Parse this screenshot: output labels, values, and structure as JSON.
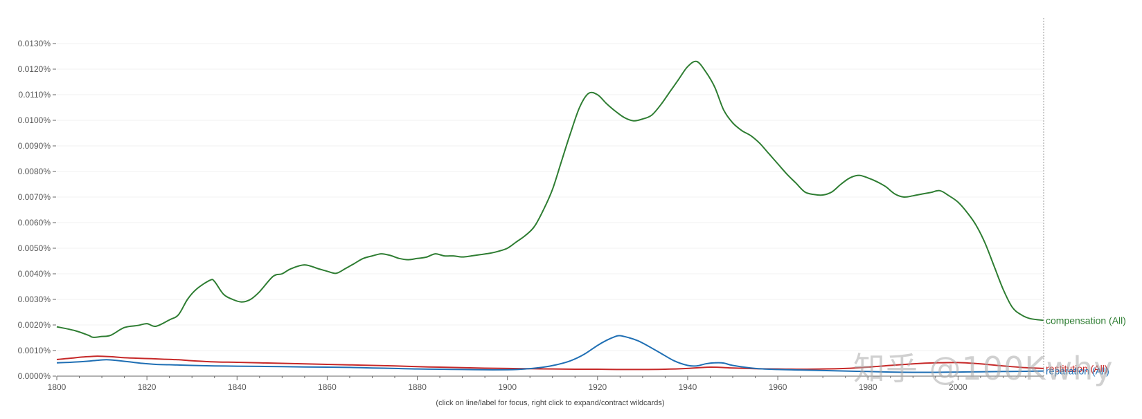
{
  "chart_data": {
    "type": "line",
    "title": "",
    "xlabel": "",
    "ylabel": "",
    "xlim": [
      1800,
      2019
    ],
    "ylim": [
      0,
      0.013
    ],
    "x_ticks": [
      1800,
      1820,
      1840,
      1860,
      1880,
      1900,
      1920,
      1940,
      1960,
      1980,
      2000
    ],
    "y_ticks": [
      0,
      0.001,
      0.002,
      0.003,
      0.004,
      0.005,
      0.006,
      0.007,
      0.008,
      0.009,
      0.01,
      0.011,
      0.012,
      0.013
    ],
    "y_tick_labels": [
      "0.0000%",
      "0.0010%",
      "0.0020%",
      "0.0030%",
      "0.0040%",
      "0.0050%",
      "0.0060%",
      "0.0070%",
      "0.0080%",
      "0.0090%",
      "0.0100%",
      "0.0110%",
      "0.0120%",
      "0.0130%"
    ],
    "grid": true,
    "series": [
      {
        "name": "compensation (All)",
        "color": "#2e7d32",
        "x": [
          1800,
          1804,
          1807,
          1808,
          1810,
          1812,
          1815,
          1818,
          1820,
          1822,
          1825,
          1827,
          1829,
          1831,
          1834,
          1835,
          1837,
          1839,
          1841,
          1843,
          1845,
          1848,
          1850,
          1852,
          1855,
          1858,
          1860,
          1862,
          1864,
          1866,
          1868,
          1870,
          1872,
          1874,
          1876,
          1878,
          1880,
          1882,
          1884,
          1886,
          1888,
          1890,
          1892,
          1894,
          1896,
          1898,
          1900,
          1902,
          1904,
          1906,
          1908,
          1910,
          1912,
          1914,
          1916,
          1918,
          1920,
          1922,
          1924,
          1926,
          1928,
          1930,
          1932,
          1934,
          1936,
          1938,
          1940,
          1942,
          1944,
          1946,
          1948,
          1950,
          1952,
          1954,
          1956,
          1958,
          1960,
          1962,
          1964,
          1966,
          1968,
          1970,
          1972,
          1974,
          1976,
          1978,
          1980,
          1982,
          1984,
          1986,
          1988,
          1990,
          1992,
          1994,
          1996,
          1998,
          2000,
          2002,
          2004,
          2006,
          2008,
          2010,
          2012,
          2014,
          2016,
          2019
        ],
        "values": [
          0.00193,
          0.00178,
          0.0016,
          0.00152,
          0.00155,
          0.0016,
          0.0019,
          0.00198,
          0.00205,
          0.00195,
          0.0022,
          0.0024,
          0.003,
          0.0034,
          0.00375,
          0.0037,
          0.0032,
          0.003,
          0.0029,
          0.003,
          0.0033,
          0.0039,
          0.004,
          0.0042,
          0.00435,
          0.0042,
          0.0041,
          0.00402,
          0.0042,
          0.0044,
          0.0046,
          0.0047,
          0.00478,
          0.00472,
          0.0046,
          0.00455,
          0.0046,
          0.00465,
          0.00478,
          0.0047,
          0.0047,
          0.00466,
          0.0047,
          0.00475,
          0.0048,
          0.00488,
          0.005,
          0.00525,
          0.0055,
          0.00585,
          0.0065,
          0.0073,
          0.0084,
          0.0095,
          0.0105,
          0.01105,
          0.011,
          0.01065,
          0.01035,
          0.0101,
          0.00998,
          0.01005,
          0.0102,
          0.0106,
          0.0111,
          0.0116,
          0.0121,
          0.0123,
          0.0119,
          0.0113,
          0.0104,
          0.0099,
          0.0096,
          0.0094,
          0.0091,
          0.0087,
          0.0083,
          0.0079,
          0.00755,
          0.0072,
          0.0071,
          0.00708,
          0.0072,
          0.0075,
          0.00775,
          0.00785,
          0.00775,
          0.0076,
          0.0074,
          0.00712,
          0.007,
          0.00705,
          0.00712,
          0.00718,
          0.00725,
          0.00705,
          0.0068,
          0.0064,
          0.0059,
          0.0052,
          0.0043,
          0.0034,
          0.0027,
          0.0024,
          0.00225,
          0.00218
        ]
      },
      {
        "name": "restitution (All)",
        "color": "#c62828",
        "x": [
          1800,
          1803,
          1806,
          1809,
          1812,
          1815,
          1818,
          1821,
          1824,
          1827,
          1830,
          1833,
          1836,
          1840,
          1845,
          1850,
          1855,
          1860,
          1865,
          1870,
          1875,
          1880,
          1885,
          1890,
          1895,
          1900,
          1905,
          1910,
          1915,
          1920,
          1925,
          1930,
          1935,
          1940,
          1945,
          1950,
          1955,
          1960,
          1965,
          1970,
          1975,
          1980,
          1985,
          1990,
          1995,
          2000,
          2005,
          2010,
          2015,
          2019
        ],
        "values": [
          0.00065,
          0.0007,
          0.00075,
          0.00078,
          0.00076,
          0.00072,
          0.0007,
          0.00068,
          0.00066,
          0.00064,
          0.0006,
          0.00057,
          0.00055,
          0.00054,
          0.00052,
          0.0005,
          0.00048,
          0.00046,
          0.00044,
          0.00042,
          0.0004,
          0.00037,
          0.00035,
          0.00033,
          0.00031,
          0.0003,
          0.00029,
          0.00028,
          0.00027,
          0.00027,
          0.00026,
          0.00026,
          0.00027,
          0.0003,
          0.00035,
          0.00032,
          0.00029,
          0.00028,
          0.00027,
          0.00028,
          0.0003,
          0.00035,
          0.00042,
          0.00048,
          0.00052,
          0.00053,
          0.00048,
          0.0004,
          0.00033,
          0.0003
        ]
      },
      {
        "name": "reparation (All)",
        "color": "#1f6fb4",
        "x": [
          1800,
          1803,
          1806,
          1809,
          1811,
          1813,
          1816,
          1819,
          1822,
          1826,
          1830,
          1835,
          1840,
          1845,
          1850,
          1855,
          1860,
          1865,
          1870,
          1875,
          1880,
          1885,
          1890,
          1895,
          1900,
          1904,
          1908,
          1911,
          1914,
          1917,
          1920,
          1922,
          1924,
          1925,
          1927,
          1929,
          1931,
          1934,
          1937,
          1940,
          1942,
          1944,
          1946,
          1948,
          1950,
          1955,
          1960,
          1965,
          1970,
          1975,
          1980,
          1985,
          1990,
          1995,
          2000,
          2005,
          2010,
          2015,
          2019
        ],
        "values": [
          0.00052,
          0.00054,
          0.00057,
          0.00062,
          0.00064,
          0.00062,
          0.00056,
          0.0005,
          0.00046,
          0.00044,
          0.00042,
          0.0004,
          0.00039,
          0.00038,
          0.00037,
          0.00036,
          0.00035,
          0.00034,
          0.00032,
          0.0003,
          0.00028,
          0.00027,
          0.00026,
          0.00025,
          0.00025,
          0.00028,
          0.00035,
          0.00045,
          0.0006,
          0.00085,
          0.0012,
          0.0014,
          0.00155,
          0.00158,
          0.0015,
          0.00138,
          0.0012,
          0.0009,
          0.0006,
          0.00042,
          0.0004,
          0.00048,
          0.00052,
          0.00051,
          0.00042,
          0.0003,
          0.00026,
          0.00024,
          0.00022,
          0.0002,
          0.00018,
          0.00016,
          0.00015,
          0.00015,
          0.00016,
          0.00017,
          0.00018,
          0.00019,
          0.0002
        ]
      }
    ]
  },
  "footnote": "(click on line/label for focus, right click to expand/contract wildcards)",
  "watermark": "知乎 @100Kwhy"
}
